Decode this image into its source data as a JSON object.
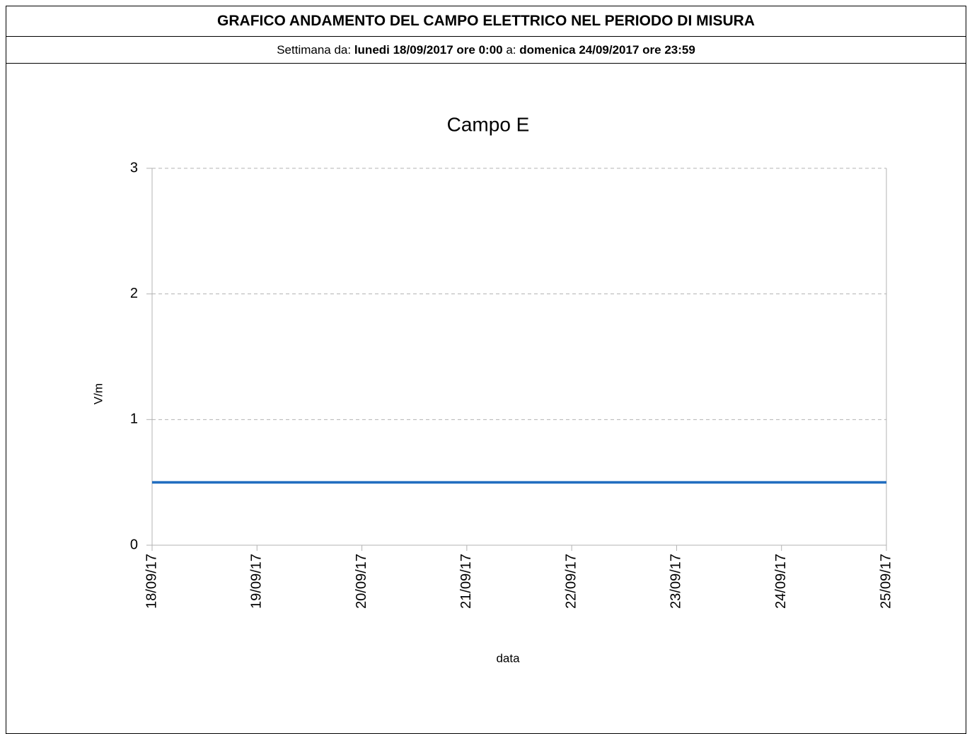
{
  "header": {
    "title": "GRAFICO ANDAMENTO DEL CAMPO ELETTRICO NEL PERIODO DI MISURA",
    "subtitle": [
      "Settimana da: ",
      "lunedi 18/09/2017 ore 0:00",
      " a: ",
      "domenica 24/09/2017 ore 23:59"
    ]
  },
  "chart_data": {
    "type": "line",
    "title": "Campo E",
    "x_label": "data",
    "y_label": "V/m",
    "x": [
      "18/09/17",
      "25/09/17"
    ],
    "series": [
      {
        "name": "Campo E",
        "color": "#1f6cbf",
        "values": [
          0.5,
          0.5
        ]
      }
    ],
    "xlim": [
      "18/09/17",
      "25/09/17"
    ],
    "xticks": [
      "18/09/17",
      "19/09/17",
      "20/09/17",
      "21/09/17",
      "22/09/17",
      "23/09/17",
      "24/09/17",
      "25/09/17"
    ],
    "ylim": [
      0,
      3
    ],
    "yticks": [
      0,
      1,
      2,
      3
    ],
    "grid": true
  }
}
